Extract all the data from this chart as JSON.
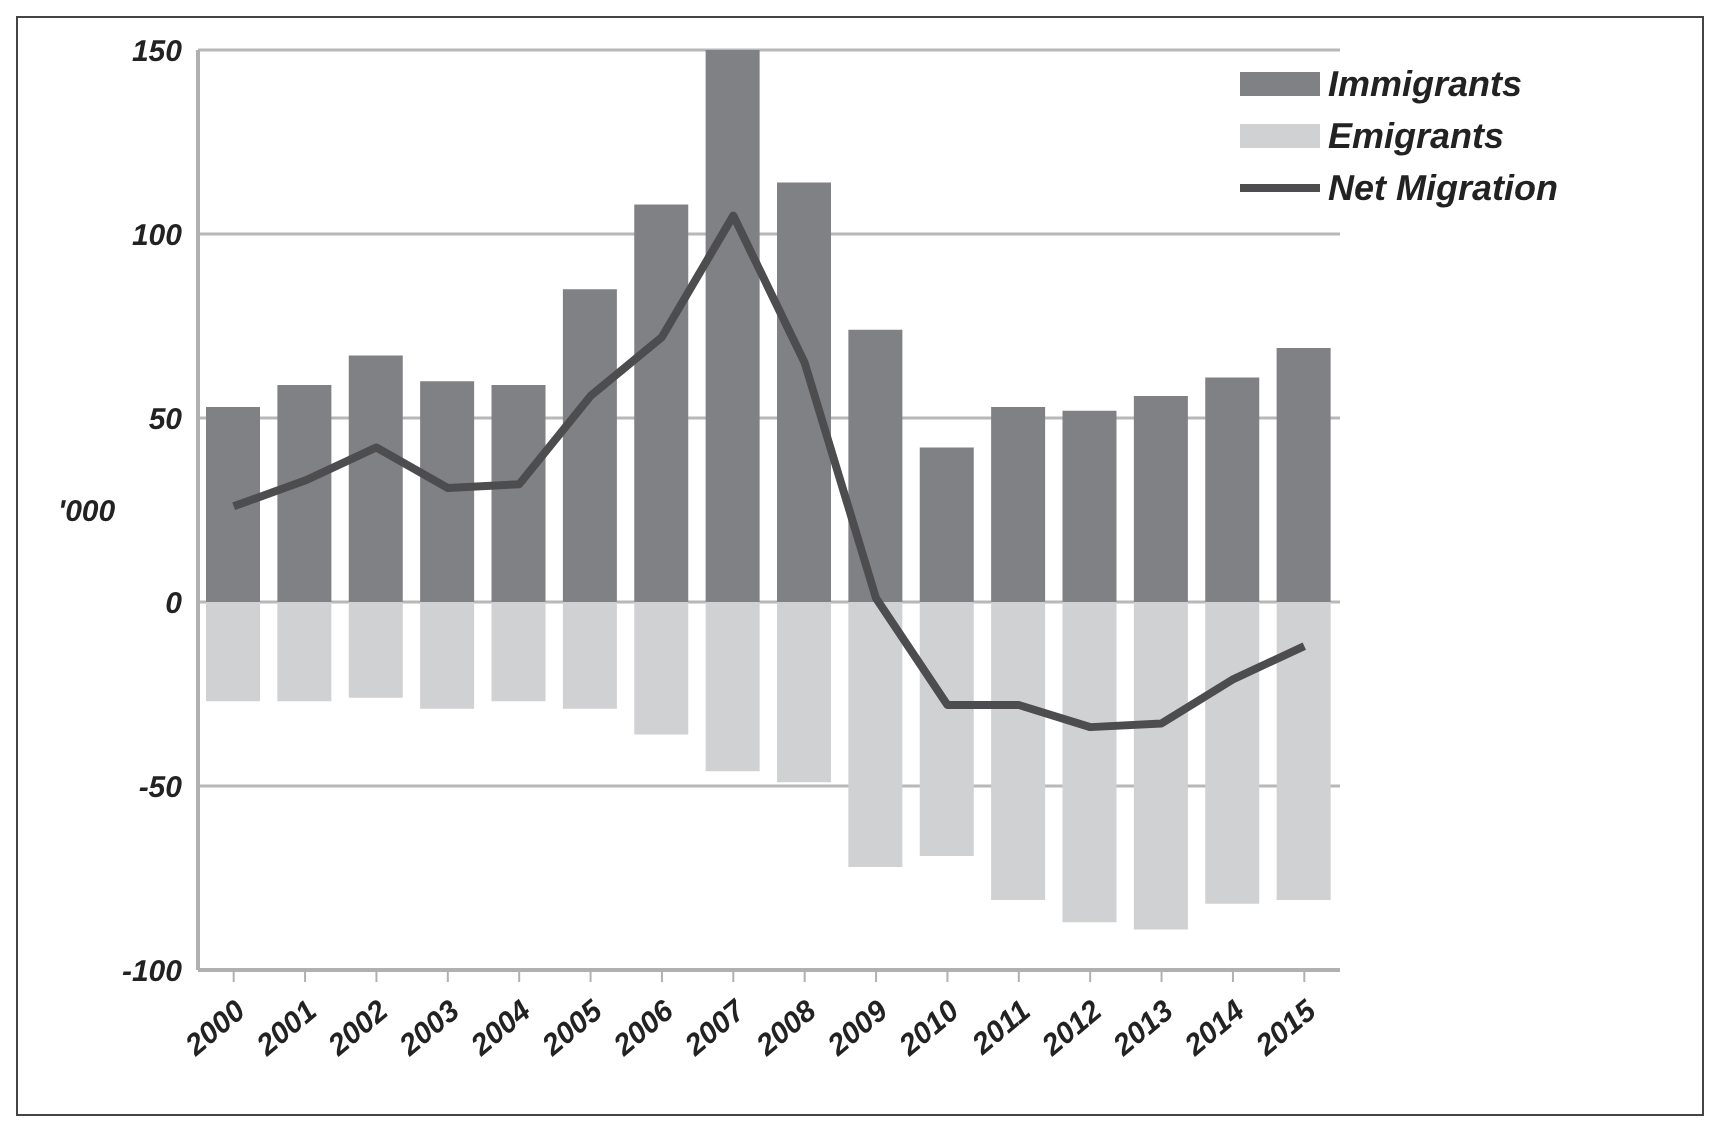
{
  "chart_data": {
    "type": "bar",
    "ylabel": "'000",
    "categories": [
      "2000",
      "2001",
      "2002",
      "2003",
      "2004",
      "2005",
      "2006",
      "2007",
      "2008",
      "2009",
      "2010",
      "2011",
      "2012",
      "2013",
      "2014",
      "2015"
    ],
    "series": [
      {
        "name": "Immigrants",
        "color": "#808184",
        "values": [
          53,
          59,
          67,
          60,
          59,
          85,
          108,
          150,
          114,
          74,
          42,
          53,
          52,
          56,
          61,
          69
        ]
      },
      {
        "name": "Emigrants",
        "color": "#d0d1d3",
        "values": [
          -27,
          -27,
          -26,
          -29,
          -27,
          -29,
          -36,
          -46,
          -49,
          -72,
          -69,
          -81,
          -87,
          -89,
          -82,
          -81
        ]
      },
      {
        "name": "Net Migration",
        "type": "line",
        "color": "#4d4d4f",
        "values": [
          26,
          33,
          42,
          31,
          32,
          56,
          72,
          105,
          65,
          1,
          -28,
          -28,
          -34,
          -33,
          -21,
          -12
        ]
      }
    ],
    "stacked": true,
    "ylim": [
      -100,
      150
    ],
    "yticks": [
      -100,
      -50,
      0,
      50,
      100,
      150
    ],
    "grid": "y",
    "legend": "top right",
    "marker": "none",
    "line_style": "solid"
  }
}
